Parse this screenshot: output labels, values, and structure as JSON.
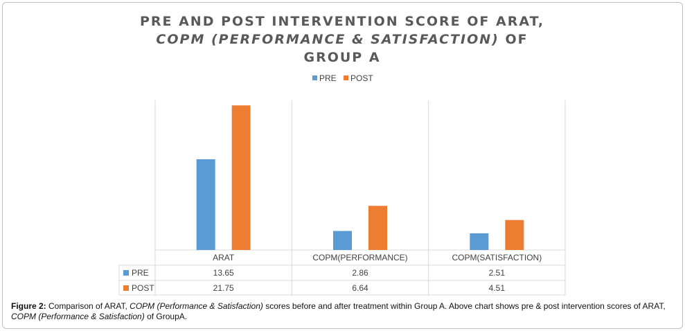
{
  "chart_data": {
    "type": "bar",
    "title_parts": [
      {
        "text": "PRE AND POST INTERVENTION SCORE OF ARAT,",
        "italic": false
      },
      {
        "text": "COPM (PERFORMANCE & SATISFACTION)",
        "italic": true,
        "suffix": "  OF"
      },
      {
        "text": "GROUP A",
        "italic": false
      }
    ],
    "categories": [
      "ARAT",
      "COPM(PERFORMANCE)",
      "COPM(SATISFACTION)"
    ],
    "series": [
      {
        "name": "PRE",
        "values": [
          13.65,
          2.86,
          2.51
        ],
        "labels": [
          "13.65",
          "2.86",
          "2.51"
        ],
        "color": "#5b9bd5"
      },
      {
        "name": "POST",
        "values": [
          21.75,
          6.64,
          4.51
        ],
        "labels": [
          "21.75",
          "6.64",
          "4.51"
        ],
        "color": "#ed7d31"
      }
    ],
    "ylim": [
      0,
      22.5
    ],
    "legend": "top-center",
    "data_table": true,
    "grid": "vertical category separators"
  },
  "caption": {
    "label": "Figure 2:",
    "segments": [
      {
        "text": " Comparison of ARAT, ",
        "italic": false
      },
      {
        "text": "COPM (Performance & Satisfaction)",
        "italic": true
      },
      {
        "text": " scores before and after treatment within Group A. Above chart shows pre & post intervention scores of ARAT, ",
        "italic": false
      },
      {
        "text": "COPM (Performance & Satisfaction)",
        "italic": true
      },
      {
        "text": " of GroupA.",
        "italic": false
      }
    ]
  }
}
